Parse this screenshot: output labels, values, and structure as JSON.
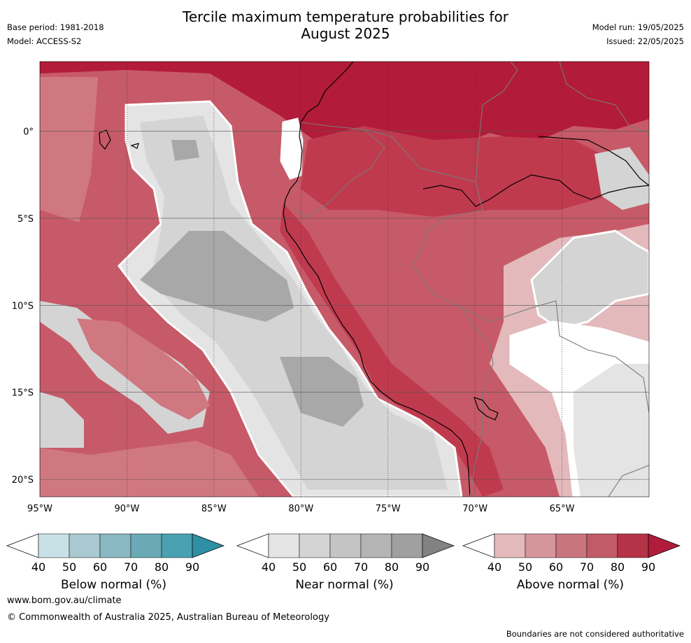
{
  "header": {
    "title_line1": "Tercile maximum temperature probabilities for",
    "title_line2": "August 2025",
    "base_period": "Base period: 1981-2018",
    "model": "Model: ACCESS-S2",
    "model_run": "Model run: 19/05/2025",
    "issued": "Issued: 22/05/2025"
  },
  "map": {
    "lon_labels": [
      "95°W",
      "90°W",
      "85°W",
      "80°W",
      "75°W",
      "70°W",
      "65°W"
    ],
    "lat_labels": [
      "0°",
      "5°S",
      "10°S",
      "15°S",
      "20°S"
    ],
    "lon_range": [
      -95,
      -60
    ],
    "lat_range": [
      -21,
      4
    ],
    "colors": {
      "above_90": "#b31b3a",
      "above_80": "#c03a4e",
      "above_70": "#c75a68",
      "above_60": "#d07880",
      "above_50": "#d9989d",
      "above_40": "#e3b9bc",
      "near_50": "#e4e4e4",
      "near_60": "#d4d4d4",
      "near_70": "#c4c4c4",
      "near_80": "#a8a8a8",
      "white": "#ffffff",
      "coast": "#000000",
      "border": "#7a7a7a"
    }
  },
  "colorbars": {
    "ticks": [
      "40",
      "50",
      "60",
      "70",
      "80",
      "90"
    ],
    "below": {
      "title": "Below normal (%)",
      "colors": [
        "#ffffff",
        "#c8e1e6",
        "#a7c9cf",
        "#89b8c2",
        "#6aaab6",
        "#49a1b1",
        "#2e8fa5"
      ]
    },
    "near": {
      "title": "Near normal (%)",
      "colors": [
        "#ffffff",
        "#e4e4e4",
        "#d4d4d4",
        "#c4c4c4",
        "#b4b4b4",
        "#a0a0a0",
        "#828282"
      ]
    },
    "above": {
      "title": "Above normal (%)",
      "colors": [
        "#ffffff",
        "#e3b9bc",
        "#d4959b",
        "#c97580",
        "#c25a68",
        "#b53346",
        "#b01c3a"
      ]
    }
  },
  "footer": {
    "website": "www.bom.gov.au/climate",
    "copyright": "© Commonwealth of Australia 2025, Australian Bureau of Meteorology",
    "disclaimer": "Boundaries are not considered authoritative"
  }
}
